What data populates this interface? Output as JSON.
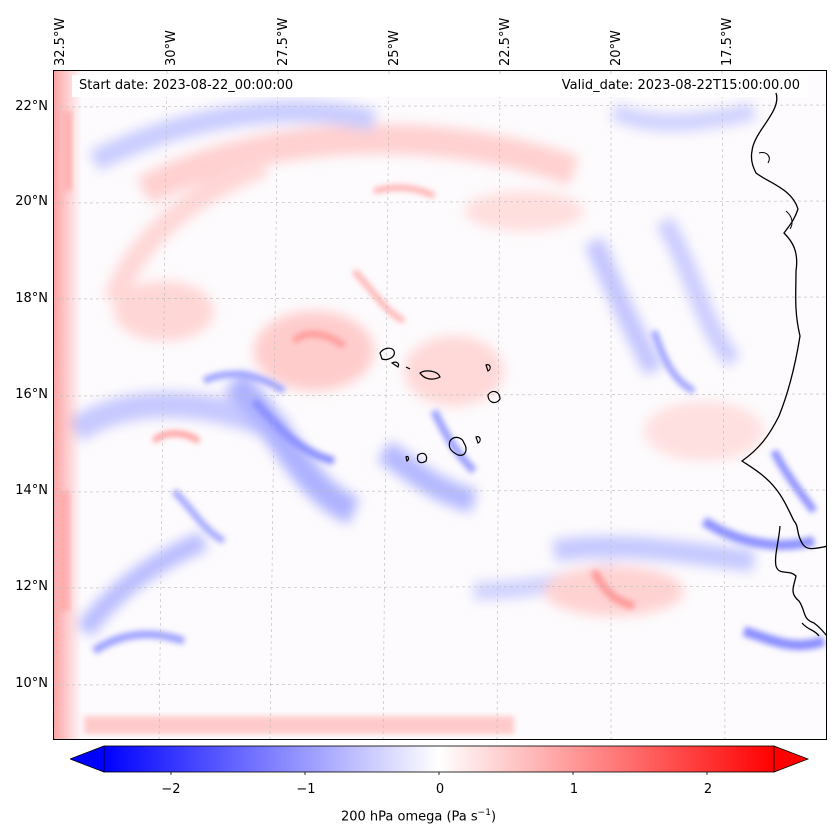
{
  "map": {
    "start_date_label": "Start date: 2023-08-22_00:00:00",
    "valid_date_label": "Valid_date: 2023-08-22T15:00:00.00",
    "lon_labels": [
      "32.5°W",
      "30°W",
      "27.5°W",
      "25°W",
      "22.5°W",
      "20°W",
      "17.5°W"
    ],
    "lat_labels": [
      "22°N",
      "20°N",
      "18°N",
      "16°N",
      "14°N",
      "12°N",
      "10°N"
    ],
    "extent": {
      "lon_min": -32.6,
      "lon_max": -15.6,
      "lat_min": 8.9,
      "lat_max": 22.8
    },
    "colors": {
      "negative": "#0000ff",
      "zero": "#ffffff",
      "positive": "#ff0000",
      "coast": "#000000"
    }
  },
  "colorbar": {
    "label_main": "200 hPa omega (Pa s",
    "label_exp": "−1",
    "label_close": ")",
    "tick_labels": [
      "−2",
      "−1",
      "0",
      "1",
      "2"
    ],
    "ticks": [
      -2,
      -1,
      0,
      1,
      2
    ],
    "range": [
      -2.5,
      2.5
    ]
  }
}
